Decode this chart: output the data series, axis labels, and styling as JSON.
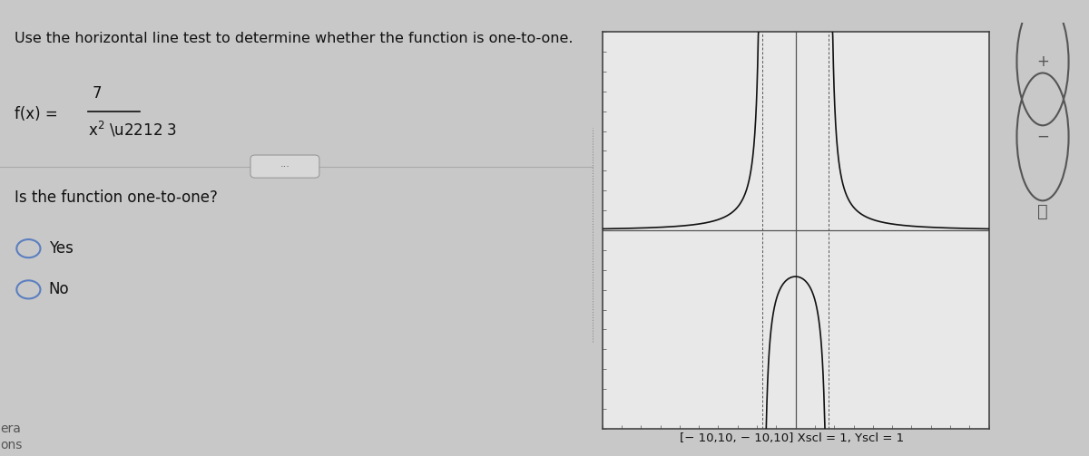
{
  "title_text": "Use the horizontal line test to determine whether the function is one-to-one.",
  "question_text": "Is the function one-to-one?",
  "choice1": "Yes",
  "choice2": "No",
  "graph_caption": "[− 10,10, − 10,10] Xscl = 1, Yscl = 1",
  "bg_color": "#c8c8c8",
  "left_bg": "#d4d4d4",
  "right_bg": "#c8c8c8",
  "graph_bg": "#e8e8e8",
  "graph_border_color": "#444444",
  "axis_color": "#555555",
  "curve_color": "#111111",
  "radio_color": "#5b7fc0",
  "text_color": "#111111",
  "sep_color": "#aaaaaa",
  "title_fontsize": 11.5,
  "body_fontsize": 11,
  "xmin": -10,
  "xmax": 10,
  "ymin": -10,
  "ymax": 10,
  "asymptotes": [
    -1.7320508,
    1.7320508
  ]
}
